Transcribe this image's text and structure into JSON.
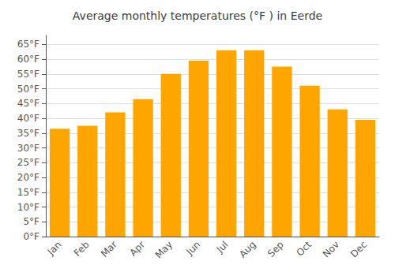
{
  "chart_data": {
    "type": "bar",
    "title": "Average monthly temperatures (°F ) in Eerde",
    "categories": [
      "Jan",
      "Feb",
      "Mar",
      "Apr",
      "May",
      "Jun",
      "Jul",
      "Aug",
      "Sep",
      "Oct",
      "Nov",
      "Dec"
    ],
    "values": [
      36.5,
      37.5,
      42.0,
      46.5,
      55.0,
      59.5,
      63.0,
      63.0,
      57.5,
      51.0,
      43.0,
      39.5
    ],
    "color": "#FFA500",
    "ylim": [
      0,
      68
    ],
    "yticks": [
      {
        "value": 0,
        "label": "0°F"
      },
      {
        "value": 5,
        "label": "5°F"
      },
      {
        "value": 10,
        "label": "10°F"
      },
      {
        "value": 15,
        "label": "15°F"
      },
      {
        "value": 20,
        "label": "20°F"
      },
      {
        "value": 25,
        "label": "25°F"
      },
      {
        "value": 30,
        "label": "30°F"
      },
      {
        "value": 35,
        "label": "35°F"
      },
      {
        "value": 40,
        "label": "40°F"
      },
      {
        "value": 45,
        "label": "45°F"
      },
      {
        "value": 50,
        "label": "50°F"
      },
      {
        "value": 55,
        "label": "55°F"
      },
      {
        "value": 60,
        "label": "60°F"
      },
      {
        "value": 65,
        "label": "65°F"
      }
    ],
    "grid": true
  }
}
